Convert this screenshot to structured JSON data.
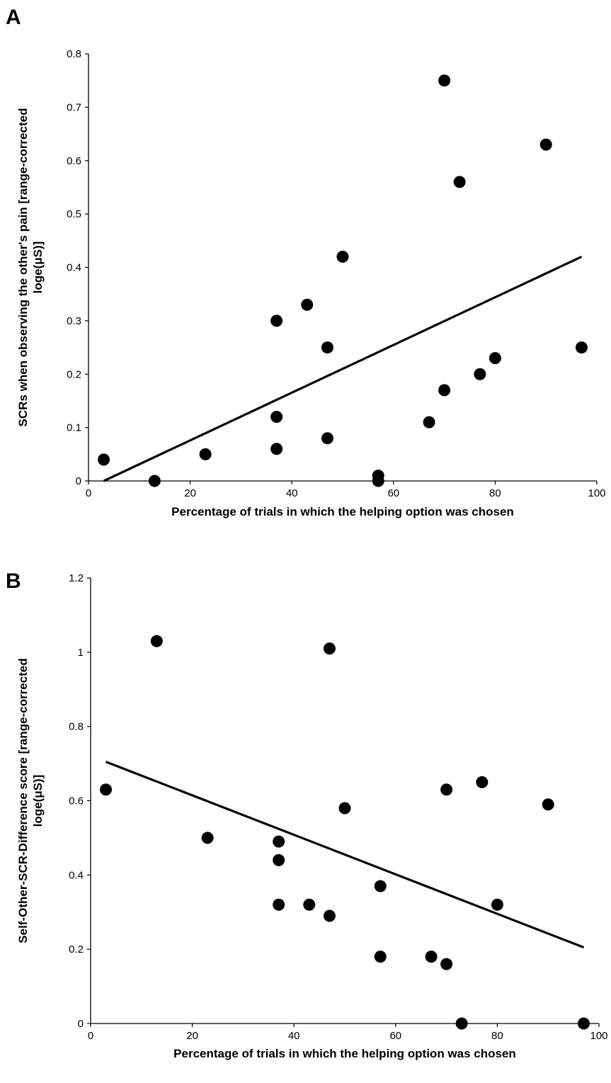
{
  "chart_data": [
    {
      "panel_label": "A",
      "type": "scatter",
      "xlabel": "Percentage of trials in which the helping option was chosen",
      "ylabel_lines": [
        "SCRs when observing the other's pain [range-corrected",
        "loge(μS)]"
      ],
      "xlim": [
        0,
        100
      ],
      "ylim": [
        0,
        0.8
      ],
      "xticks": [
        0,
        20,
        40,
        60,
        80,
        100
      ],
      "xtick_labels": [
        "0",
        "20",
        "40",
        "60",
        "80",
        "100"
      ],
      "yticks": [
        0,
        0.1,
        0.2,
        0.3,
        0.4,
        0.5,
        0.6,
        0.7,
        0.8
      ],
      "ytick_labels": [
        "0",
        "0.1",
        "0.2",
        "0.3",
        "0.4",
        "0.5",
        "0.6",
        "0.7",
        "0.8"
      ],
      "grid": false,
      "points": [
        {
          "x": 3,
          "y": 0.04
        },
        {
          "x": 13,
          "y": 0.0
        },
        {
          "x": 23,
          "y": 0.05
        },
        {
          "x": 37,
          "y": 0.3
        },
        {
          "x": 37,
          "y": 0.12
        },
        {
          "x": 37,
          "y": 0.06
        },
        {
          "x": 43,
          "y": 0.33
        },
        {
          "x": 47,
          "y": 0.25
        },
        {
          "x": 47,
          "y": 0.08
        },
        {
          "x": 50,
          "y": 0.42
        },
        {
          "x": 57,
          "y": 0.01
        },
        {
          "x": 57,
          "y": 0.0
        },
        {
          "x": 67,
          "y": 0.11
        },
        {
          "x": 70,
          "y": 0.75
        },
        {
          "x": 70,
          "y": 0.17
        },
        {
          "x": 73,
          "y": 0.56
        },
        {
          "x": 77,
          "y": 0.2
        },
        {
          "x": 80,
          "y": 0.23
        },
        {
          "x": 90,
          "y": 0.63
        },
        {
          "x": 97,
          "y": 0.25
        }
      ],
      "trendline": {
        "x": [
          3,
          97
        ],
        "y": [
          0.0,
          0.42
        ]
      },
      "colors": {
        "points": "#000000",
        "line": "#000000"
      }
    },
    {
      "panel_label": "B",
      "type": "scatter",
      "xlabel": "Percentage of trials in which the helping option was chosen",
      "ylabel_lines": [
        "Self-Other-SCR-Difference score [range-corrected",
        "loge(μS)]"
      ],
      "xlim": [
        0,
        100
      ],
      "ylim": [
        0,
        1.2
      ],
      "xticks": [
        0,
        20,
        40,
        60,
        80,
        100
      ],
      "xtick_labels": [
        "0",
        "20",
        "40",
        "60",
        "80",
        "100"
      ],
      "yticks": [
        0,
        0.2,
        0.4,
        0.6,
        0.8,
        1.0,
        1.2
      ],
      "ytick_labels": [
        "0",
        "0.2",
        "0.4",
        "0.6",
        "0.8",
        "1",
        "1.2"
      ],
      "grid": false,
      "points": [
        {
          "x": 3,
          "y": 0.63
        },
        {
          "x": 13,
          "y": 1.03
        },
        {
          "x": 23,
          "y": 0.5
        },
        {
          "x": 37,
          "y": 0.49
        },
        {
          "x": 37,
          "y": 0.44
        },
        {
          "x": 37,
          "y": 0.32
        },
        {
          "x": 43,
          "y": 0.32
        },
        {
          "x": 47,
          "y": 1.01
        },
        {
          "x": 47,
          "y": 0.29
        },
        {
          "x": 50,
          "y": 0.58
        },
        {
          "x": 57,
          "y": 0.37
        },
        {
          "x": 57,
          "y": 0.18
        },
        {
          "x": 67,
          "y": 0.18
        },
        {
          "x": 70,
          "y": 0.63
        },
        {
          "x": 70,
          "y": 0.16
        },
        {
          "x": 73,
          "y": 0.0
        },
        {
          "x": 77,
          "y": 0.65
        },
        {
          "x": 80,
          "y": 0.32
        },
        {
          "x": 90,
          "y": 0.59
        },
        {
          "x": 97,
          "y": 0.0
        }
      ],
      "trendline": {
        "x": [
          3,
          97
        ],
        "y": [
          0.705,
          0.205
        ]
      },
      "colors": {
        "points": "#000000",
        "line": "#000000"
      }
    }
  ]
}
